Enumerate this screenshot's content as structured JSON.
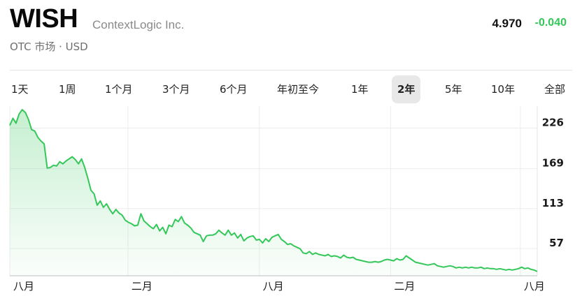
{
  "header": {
    "ticker": "WISH",
    "company": "ContextLogic Inc.",
    "exchange": "OTC 市场 · USD",
    "price": "4.970",
    "change": "-0.040",
    "change_color": "#34c759"
  },
  "ranges": {
    "items": [
      "1天",
      "1周",
      "1个月",
      "3个月",
      "6个月",
      "年初至今",
      "1年",
      "2年",
      "5年",
      "10年",
      "全部"
    ],
    "selected": "2年"
  },
  "chart_data": {
    "type": "area",
    "line_color": "#34c759",
    "y_ticks": [
      226,
      169,
      113,
      57
    ],
    "ylim": [
      11,
      249
    ],
    "x_labels": [
      "八月",
      "二月",
      "八月",
      "二月",
      "八月"
    ],
    "grid": true,
    "axis_position": "right",
    "values": [
      222,
      232,
      225,
      238,
      244,
      240,
      230,
      216,
      214,
      205,
      200,
      196,
      162,
      163,
      166,
      165,
      171,
      168,
      172,
      175,
      178,
      174,
      168,
      175,
      163,
      148,
      131,
      126,
      110,
      116,
      107,
      112,
      104,
      98,
      104,
      99,
      96,
      89,
      86,
      84,
      81,
      82,
      98,
      88,
      84,
      80,
      77,
      83,
      74,
      79,
      70,
      82,
      80,
      90,
      87,
      94,
      85,
      82,
      78,
      72,
      70,
      68,
      59,
      67,
      68,
      68,
      70,
      75,
      71,
      68,
      75,
      68,
      71,
      64,
      69,
      60,
      64,
      66,
      67,
      61,
      62,
      57,
      63,
      59,
      65,
      67,
      69,
      62,
      59,
      55,
      56,
      53,
      51,
      49,
      43,
      42,
      45,
      41,
      43,
      41,
      40,
      39,
      41,
      38,
      39,
      38,
      36,
      40,
      37,
      36,
      37,
      34,
      33,
      32,
      31,
      30,
      30,
      31,
      30,
      31,
      33,
      34,
      33,
      32,
      35,
      33,
      34,
      39,
      36,
      33,
      30,
      29,
      28,
      27,
      26,
      27,
      28,
      25,
      24,
      23,
      24,
      25,
      24,
      22,
      23,
      22,
      23,
      22,
      23,
      22,
      22,
      23,
      21,
      22,
      21,
      21,
      20,
      21,
      20,
      19,
      20,
      19,
      20,
      21,
      23,
      21,
      22,
      20,
      19,
      17
    ]
  }
}
